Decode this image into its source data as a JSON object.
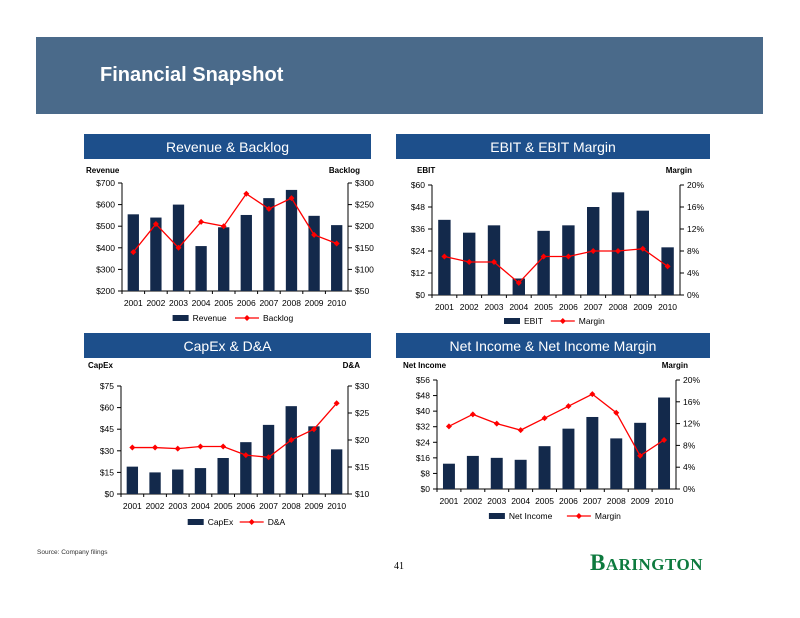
{
  "header": {
    "title": "Financial Snapshot"
  },
  "footer": {
    "source": "Source:  Company filings",
    "page_number": "41",
    "logo_initial": "B",
    "logo_rest": "ARINGTON"
  },
  "colors": {
    "banner": "#4a6a8a",
    "panel_header": "#1d4f8b",
    "bar": "#13294b",
    "line": "#ff0000",
    "logo": "#0d7a3e"
  },
  "chart_data": [
    {
      "type": "bar",
      "title": "Revenue & Backlog",
      "categories": [
        "2001",
        "2002",
        "2003",
        "2004",
        "2005",
        "2006",
        "2007",
        "2008",
        "2009",
        "2010"
      ],
      "series": [
        {
          "name": "Revenue",
          "type": "bar",
          "axis": "left",
          "values": [
            555,
            540,
            600,
            408,
            495,
            552,
            630,
            668,
            548,
            505
          ]
        },
        {
          "name": "Backlog",
          "type": "line",
          "axis": "right",
          "values": [
            140,
            205,
            150,
            210,
            200,
            275,
            240,
            265,
            180,
            160
          ]
        }
      ],
      "left_axis": {
        "label": "Revenue",
        "min": 200,
        "max": 700,
        "step": 100,
        "prefix": "$",
        "suffix": ""
      },
      "right_axis": {
        "label": "Backlog",
        "min": 50,
        "max": 300,
        "step": 50,
        "prefix": "$",
        "suffix": ""
      },
      "legend": [
        "Revenue",
        "Backlog"
      ]
    },
    {
      "type": "bar",
      "title": "EBIT & EBIT Margin",
      "categories": [
        "2001",
        "2002",
        "2003",
        "2004",
        "2005",
        "2006",
        "2007",
        "2008",
        "2009",
        "2010"
      ],
      "series": [
        {
          "name": "EBIT",
          "type": "bar",
          "axis": "left",
          "values": [
            41,
            34,
            38,
            9,
            35,
            38,
            48,
            56,
            46,
            26
          ]
        },
        {
          "name": "Margin",
          "type": "line",
          "axis": "right",
          "values": [
            7.0,
            6.0,
            6.0,
            2.2,
            7.0,
            7.0,
            8.0,
            8.0,
            8.4,
            5.2
          ]
        }
      ],
      "left_axis": {
        "label": "EBIT",
        "min": 0,
        "max": 60,
        "step": 12,
        "prefix": "$",
        "suffix": ""
      },
      "right_axis": {
        "label": "Margin",
        "min": 0,
        "max": 20,
        "step": 4,
        "prefix": "",
        "suffix": "%"
      },
      "legend": [
        "EBIT",
        "Margin"
      ]
    },
    {
      "type": "bar",
      "title": "CapEx & D&A",
      "categories": [
        "2001",
        "2002",
        "2003",
        "2004",
        "2005",
        "2006",
        "2007",
        "2008",
        "2009",
        "2010"
      ],
      "series": [
        {
          "name": "CapEx",
          "type": "bar",
          "axis": "left",
          "values": [
            19,
            15,
            17,
            18,
            25,
            36,
            48,
            61,
            47,
            31
          ]
        },
        {
          "name": "D&A",
          "type": "line",
          "axis": "right",
          "values": [
            18.6,
            18.6,
            18.4,
            18.8,
            18.8,
            17.2,
            16.8,
            20.0,
            22.0,
            26.8
          ]
        }
      ],
      "left_axis": {
        "label": "CapEx",
        "min": 0,
        "max": 75,
        "step": 15,
        "prefix": "$",
        "suffix": ""
      },
      "right_axis": {
        "label": "D&A",
        "min": 10,
        "max": 30,
        "step": 5,
        "prefix": "$",
        "suffix": ""
      },
      "legend": [
        "CapEx",
        "D&A"
      ]
    },
    {
      "type": "bar",
      "title": "Net Income & Net Income Margin",
      "categories": [
        "2001",
        "2002",
        "2003",
        "2004",
        "2005",
        "2006",
        "2007",
        "2008",
        "2009",
        "2010"
      ],
      "series": [
        {
          "name": "Net Income",
          "type": "bar",
          "axis": "left",
          "values": [
            13,
            17,
            16,
            15,
            22,
            31,
            37,
            26,
            34,
            47
          ]
        },
        {
          "name": "Margin",
          "type": "line",
          "axis": "right",
          "values": [
            11.5,
            13.7,
            12.0,
            10.8,
            13.0,
            15.2,
            17.4,
            14.0,
            6.1,
            9.0
          ]
        }
      ],
      "left_axis": {
        "label": "Net Income",
        "min": 0,
        "max": 56,
        "step": 8,
        "prefix": "$",
        "suffix": ""
      },
      "right_axis": {
        "label": "Margin",
        "min": 0,
        "max": 20,
        "step": 4,
        "prefix": "",
        "suffix": "%"
      },
      "legend": [
        "Net Income",
        "Margin"
      ]
    }
  ]
}
